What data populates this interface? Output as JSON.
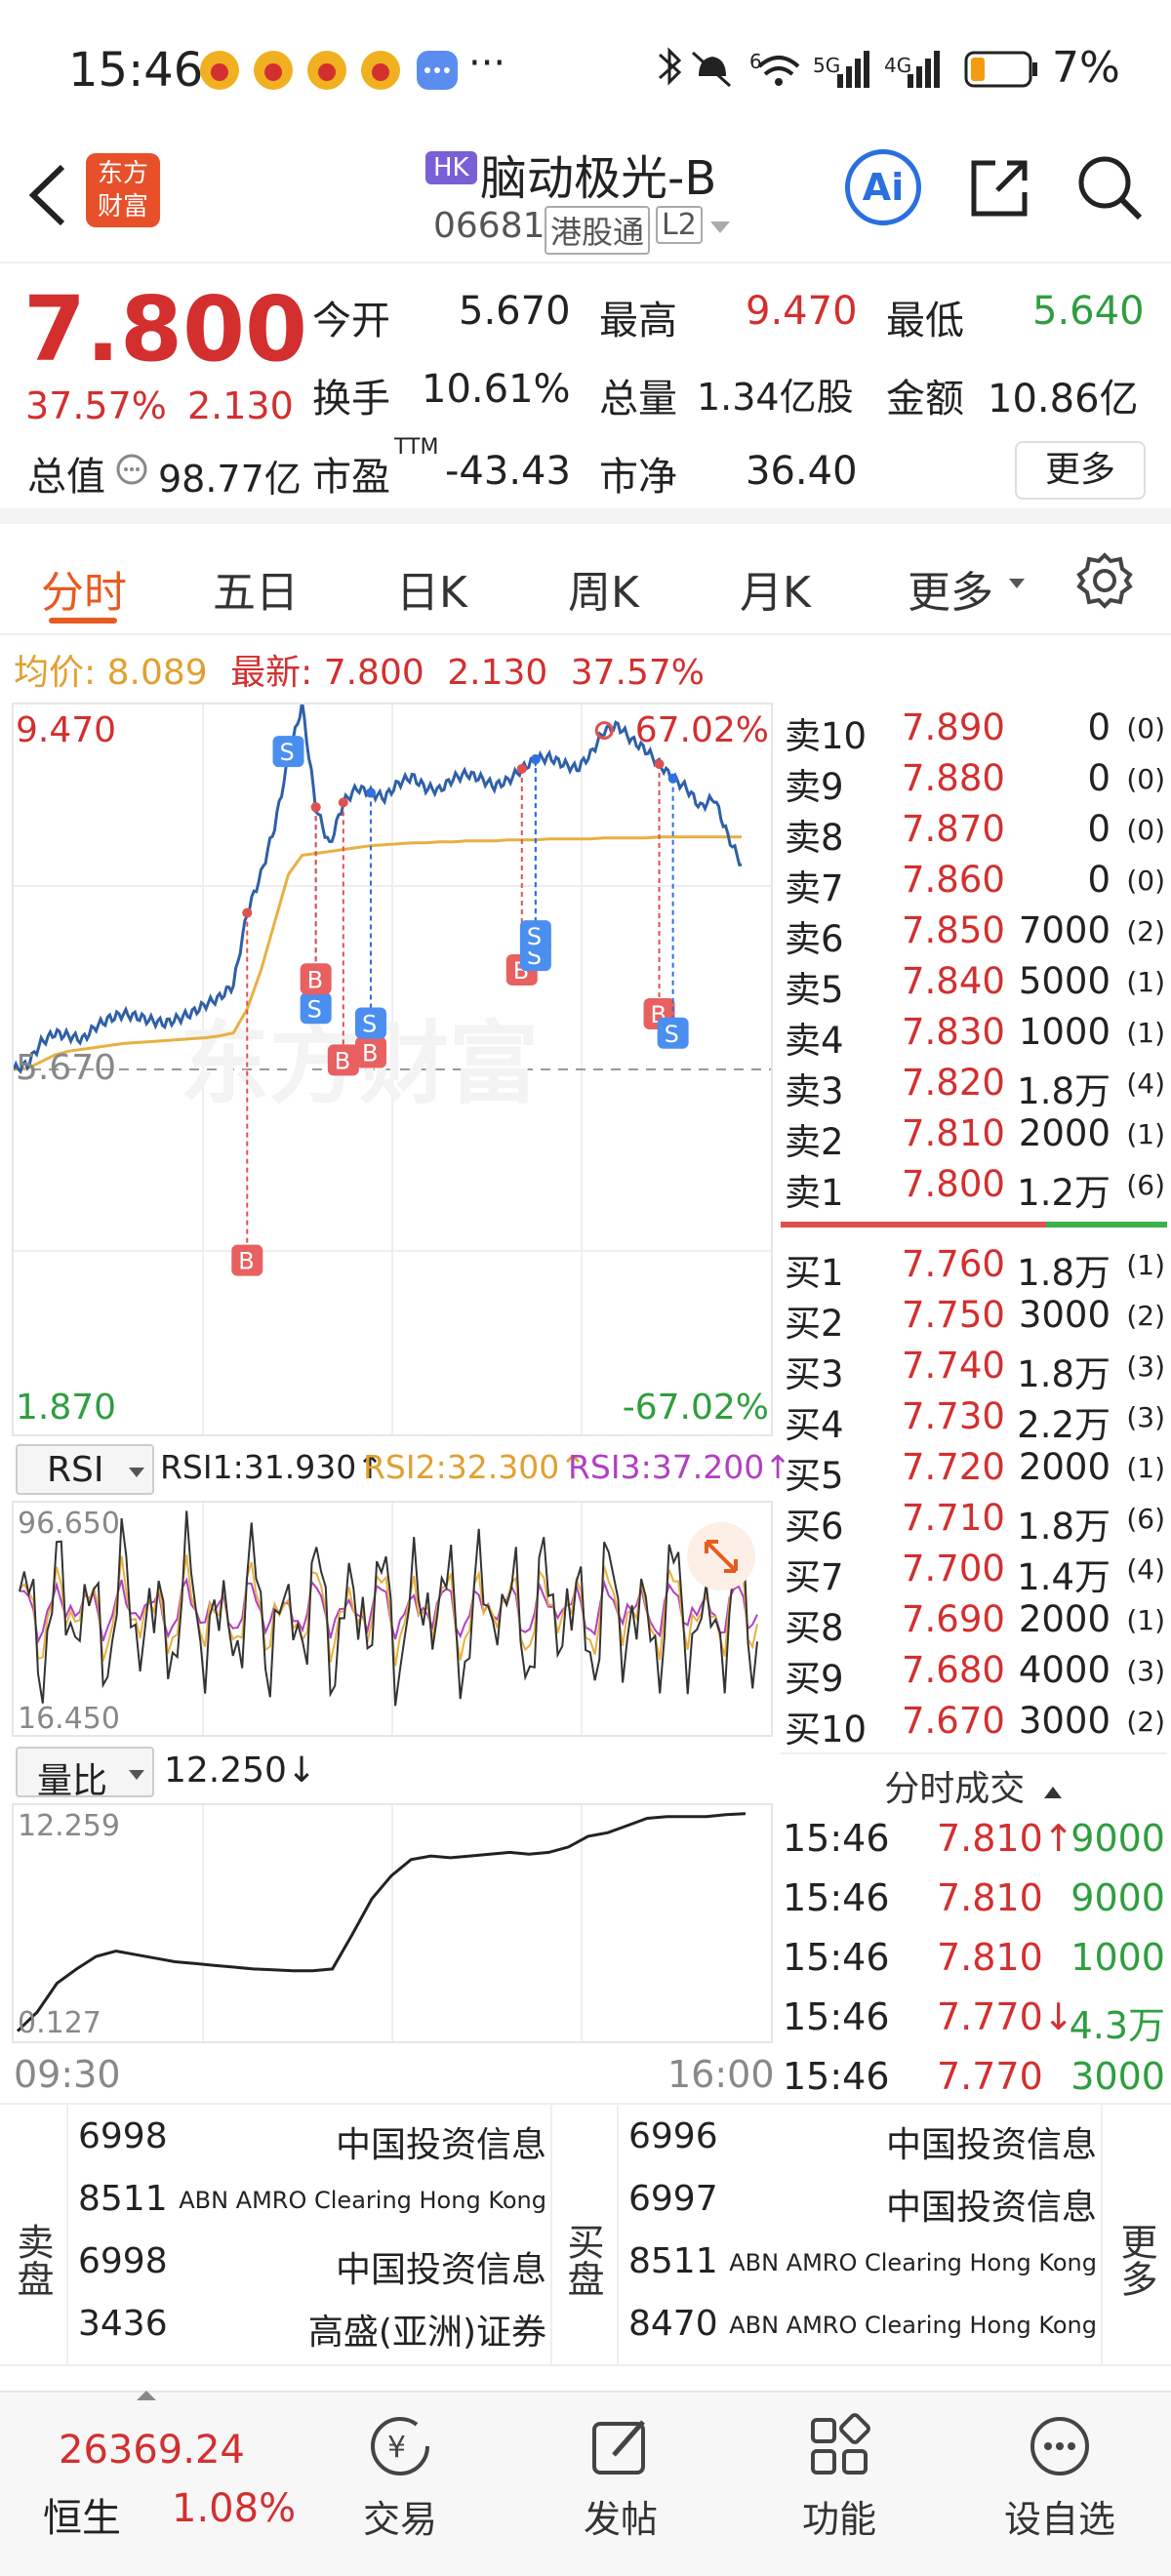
{
  "status_bar": {
    "time": "15:46",
    "more": "···",
    "battery": "7%",
    "net1": "5G",
    "net2": "4G",
    "wifi_tag": "6"
  },
  "header": {
    "logo_line1": "东方",
    "logo_line2": "财富",
    "market_badge": "HK",
    "title": "脑动极光-B",
    "code": "06681",
    "connect": "港股通",
    "level": "L2",
    "ai": "Ai"
  },
  "quote": {
    "price": "7.800",
    "pct": "37.57%",
    "chg": "2.130",
    "open_label": "今开",
    "open": "5.670",
    "high_label": "最高",
    "high": "9.470",
    "low_label": "最低",
    "low": "5.640",
    "turnover_label": "换手",
    "turnover": "10.61%",
    "volume_label": "总量",
    "volume": "1.34亿股",
    "amount_label": "金额",
    "amount": "10.86亿",
    "mktcap_label": "总值",
    "mktcap": "98.77亿",
    "pe_label": "市盈",
    "pe_sup": "TTM",
    "pe": "-43.43",
    "pb_label": "市净",
    "pb": "36.40",
    "more_btn": "更多"
  },
  "tabs": [
    "分时",
    "五日",
    "日K",
    "周K",
    "月K",
    "更多"
  ],
  "info_line": {
    "avg_label": "均价:",
    "avg": "8.089",
    "last_label": "最新:",
    "last": "7.800",
    "chg": "2.130",
    "pct": "37.57%"
  },
  "chart": {
    "ymax": "9.470",
    "ymin": "1.870",
    "pmax": "67.02%",
    "pmin": "-67.02%",
    "base": "5.670",
    "watermark": "东方财富",
    "t_start": "09:30",
    "t_end": "16:00",
    "marker_b": "B",
    "marker_s": "S",
    "price_series": [
      5.67,
      5.72,
      5.95,
      6.05,
      6.02,
      5.98,
      6.12,
      6.2,
      6.25,
      6.22,
      6.18,
      6.15,
      6.2,
      6.26,
      6.35,
      6.42,
      6.55,
      7.3,
      7.7,
      8.2,
      8.9,
      9.47,
      8.4,
      8.0,
      8.45,
      8.6,
      8.55,
      8.5,
      8.65,
      8.72,
      8.6,
      8.58,
      8.7,
      8.75,
      8.7,
      8.62,
      8.68,
      8.8,
      8.9,
      8.92,
      8.85,
      8.8,
      8.95,
      9.2,
      9.25,
      9.1,
      9.0,
      8.85,
      8.7,
      8.6,
      8.4,
      8.5,
      8.1,
      7.8
    ],
    "avg_series": [
      5.67,
      5.68,
      5.75,
      5.82,
      5.86,
      5.88,
      5.9,
      5.92,
      5.94,
      5.95,
      5.96,
      5.97,
      5.98,
      5.99,
      6.0,
      6.02,
      6.05,
      6.3,
      6.7,
      7.2,
      7.7,
      7.9,
      7.92,
      7.94,
      7.96,
      7.98,
      8.0,
      8.01,
      8.02,
      8.03,
      8.03,
      8.04,
      8.04,
      8.05,
      8.05,
      8.05,
      8.06,
      8.06,
      8.06,
      8.07,
      8.07,
      8.07,
      8.07,
      8.08,
      8.08,
      8.08,
      8.08,
      8.09,
      8.09,
      8.09,
      8.09,
      8.09,
      8.09,
      8.09
    ]
  },
  "rsi": {
    "label": "RSI",
    "rsi1": "RSI1:31.930↑",
    "rsi2": "RSI2:32.300↑",
    "rsi3": "RSI3:37.200↑",
    "max": "96.650",
    "min": "16.450"
  },
  "volratio": {
    "label": "量比",
    "value": "12.250↓",
    "max": "12.259",
    "min": "0.127"
  },
  "orderbook": {
    "asks": [
      {
        "label": "卖10",
        "price": "7.890",
        "vol": "0",
        "cnt": "(0)"
      },
      {
        "label": "卖9",
        "price": "7.880",
        "vol": "0",
        "cnt": "(0)"
      },
      {
        "label": "卖8",
        "price": "7.870",
        "vol": "0",
        "cnt": "(0)"
      },
      {
        "label": "卖7",
        "price": "7.860",
        "vol": "0",
        "cnt": "(0)"
      },
      {
        "label": "卖6",
        "price": "7.850",
        "vol": "7000",
        "cnt": "(2)"
      },
      {
        "label": "卖5",
        "price": "7.840",
        "vol": "5000",
        "cnt": "(1)"
      },
      {
        "label": "卖4",
        "price": "7.830",
        "vol": "1000",
        "cnt": "(1)"
      },
      {
        "label": "卖3",
        "price": "7.820",
        "vol": "1.8万",
        "cnt": "(4)"
      },
      {
        "label": "卖2",
        "price": "7.810",
        "vol": "2000",
        "cnt": "(1)"
      },
      {
        "label": "卖1",
        "price": "7.800",
        "vol": "1.2万",
        "cnt": "(6)"
      }
    ],
    "bids": [
      {
        "label": "买1",
        "price": "7.760",
        "vol": "1.8万",
        "cnt": "(1)"
      },
      {
        "label": "买2",
        "price": "7.750",
        "vol": "3000",
        "cnt": "(2)"
      },
      {
        "label": "买3",
        "price": "7.740",
        "vol": "1.8万",
        "cnt": "(3)"
      },
      {
        "label": "买4",
        "price": "7.730",
        "vol": "2.2万",
        "cnt": "(3)"
      },
      {
        "label": "买5",
        "price": "7.720",
        "vol": "2000",
        "cnt": "(1)"
      },
      {
        "label": "买6",
        "price": "7.710",
        "vol": "1.8万",
        "cnt": "(6)"
      },
      {
        "label": "买7",
        "price": "7.700",
        "vol": "1.4万",
        "cnt": "(4)"
      },
      {
        "label": "买8",
        "price": "7.690",
        "vol": "2000",
        "cnt": "(1)"
      },
      {
        "label": "买9",
        "price": "7.680",
        "vol": "4000",
        "cnt": "(3)"
      },
      {
        "label": "买10",
        "price": "7.670",
        "vol": "3000",
        "cnt": "(2)"
      }
    ]
  },
  "ticks": {
    "title": "分时成交",
    "rows": [
      {
        "time": "15:46",
        "price": "7.810↑",
        "vol": "9000"
      },
      {
        "time": "15:46",
        "price": "7.810",
        "vol": "9000"
      },
      {
        "time": "15:46",
        "price": "7.810",
        "vol": "1000"
      },
      {
        "time": "15:46",
        "price": "7.770↓",
        "vol": "4.3万"
      },
      {
        "time": "15:46",
        "price": "7.770",
        "vol": "3000"
      }
    ]
  },
  "brokers": {
    "sell_label": "卖盘",
    "buy_label": "买盘",
    "more": "更多",
    "sell": [
      {
        "id": "6998",
        "name": "中国投资信息"
      },
      {
        "id": "8511",
        "name": "ABN AMRO Clearing Hong Kong"
      },
      {
        "id": "6998",
        "name": "中国投资信息"
      },
      {
        "id": "3436",
        "name": "高盛(亚洲)证券"
      }
    ],
    "buy": [
      {
        "id": "6996",
        "name": "中国投资信息"
      },
      {
        "id": "6997",
        "name": "中国投资信息"
      },
      {
        "id": "8511",
        "name": "ABN AMRO Clearing Hong Kong"
      },
      {
        "id": "8470",
        "name": "ABN AMRO Clearing Hong Kong"
      }
    ]
  },
  "bottom_bar": {
    "index_value": "26369.24",
    "index_name": "恒生",
    "index_pct": "1.08%",
    "trade": "交易",
    "post": "发帖",
    "func": "功能",
    "watch": "设自选"
  },
  "colors": {
    "up": "#d32f2f",
    "down": "#2e9e3e",
    "accent": "#e65b20",
    "avg_line": "#e8b040",
    "price_line": "#2f5fa8"
  }
}
